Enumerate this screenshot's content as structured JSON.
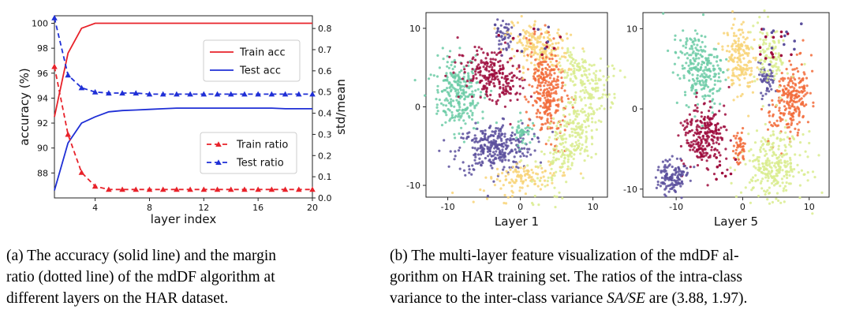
{
  "chart_data": [
    {
      "type": "line",
      "x": [
        1,
        2,
        3,
        4,
        5,
        6,
        7,
        8,
        9,
        10,
        11,
        12,
        13,
        14,
        15,
        16,
        17,
        18,
        19,
        20
      ],
      "xlabel": "layer index",
      "ylabel": "accuracy (%)",
      "ylabel_right": "std/mean",
      "xlim": [
        1,
        20
      ],
      "ylim": [
        86,
        100.6
      ],
      "ylim_right": [
        0,
        0.86
      ],
      "x_ticks": [
        "4",
        "8",
        "12",
        "16",
        "20"
      ],
      "y_ticks": [
        "88",
        "90",
        "92",
        "94",
        "96",
        "98",
        "100"
      ],
      "y_ticks_right": [
        "0.0",
        "0.1",
        "0.2",
        "0.3",
        "0.4",
        "0.5",
        "0.6",
        "0.7",
        "0.8"
      ],
      "legend_top": "right",
      "legend_bottom": "right",
      "series": [
        {
          "name": "Train acc",
          "axis": "left",
          "style": "solid",
          "color": "#e8222a",
          "values": [
            92.5,
            97.6,
            99.6,
            100,
            100,
            100,
            100,
            100,
            100,
            100,
            100,
            100,
            100,
            100,
            100,
            100,
            100,
            100,
            100,
            100
          ]
        },
        {
          "name": "Test acc",
          "axis": "left",
          "style": "solid",
          "color": "#1f2fd6",
          "values": [
            86.6,
            90.4,
            92.0,
            92.5,
            92.9,
            93.0,
            93.05,
            93.1,
            93.15,
            93.2,
            93.2,
            93.2,
            93.2,
            93.2,
            93.2,
            93.2,
            93.2,
            93.15,
            93.15,
            93.15
          ]
        },
        {
          "name": "Train ratio",
          "axis": "right",
          "style": "dashed",
          "marker": "triangle",
          "color": "#e8222a",
          "values": [
            0.62,
            0.3,
            0.12,
            0.055,
            0.04,
            0.04,
            0.04,
            0.04,
            0.04,
            0.04,
            0.04,
            0.04,
            0.04,
            0.04,
            0.04,
            0.04,
            0.04,
            0.04,
            0.04,
            0.04
          ]
        },
        {
          "name": "Test ratio",
          "axis": "right",
          "style": "dashed",
          "marker": "triangle",
          "color": "#1f2fd6",
          "values": [
            0.85,
            0.58,
            0.52,
            0.5,
            0.495,
            0.495,
            0.495,
            0.49,
            0.49,
            0.49,
            0.49,
            0.49,
            0.49,
            0.49,
            0.49,
            0.49,
            0.49,
            0.49,
            0.49,
            0.49
          ]
        }
      ]
    },
    {
      "type": "scatter",
      "xlabel": "Layer 1",
      "xlim": [
        -13,
        12
      ],
      "ylim": [
        -11.5,
        12
      ],
      "x_ticks": [
        "-10",
        "0",
        "10"
      ],
      "y_ticks": [
        "-10",
        "0",
        "10"
      ]
    },
    {
      "type": "scatter",
      "xlabel": "Layer 5",
      "xlim": [
        -15,
        13
      ],
      "ylim": [
        -11,
        12
      ],
      "x_ticks": [
        "-10",
        "0",
        "10"
      ],
      "y_ticks": [
        "-10",
        "0",
        "10"
      ]
    }
  ],
  "palette": {
    "crimson": "#9e0b3c",
    "orange": "#f26b3a",
    "yellow": "#f8d377",
    "lime": "#d9ec8e",
    "teal": "#6ccba6",
    "indigo": "#5b4f9c",
    "red": "#e8222a",
    "blue": "#1f2fd6"
  },
  "captions": {
    "a_lines": [
      "(a) The accuracy (solid line) and the margin",
      "ratio (dotted line) of the mdDF algorithm at",
      "different layers on the HAR dataset."
    ],
    "b_lines": [
      "(b) The multi-layer feature visualization of the mdDF al-",
      "gorithm on HAR training set. The ratios of the intra-class"
    ],
    "b_line3_prefix": "variance to the inter-class variance ",
    "b_math": "SA/SE",
    "b_line3_suffix": " are (3.88, 1.97)."
  }
}
